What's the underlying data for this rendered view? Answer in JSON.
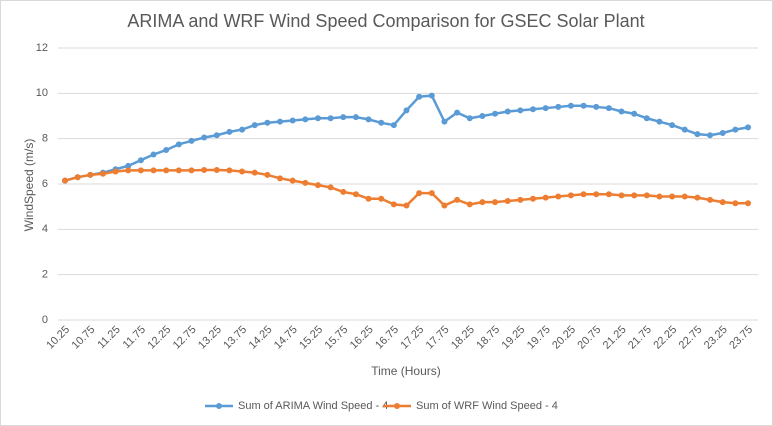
{
  "chart_data": {
    "type": "line",
    "title": "ARIMA and WRF Wind Speed Comparison for GSEC Solar Plant",
    "x_label": "Time (Hours)",
    "y_label": "WindSpeed (m/s)",
    "categories": [
      "10.25",
      null,
      "10.75",
      null,
      "11.25",
      null,
      "11.75",
      null,
      "12.25",
      null,
      "12.75",
      null,
      "13.25",
      null,
      "13.75",
      null,
      "14.25",
      null,
      "14.75",
      null,
      "15.25",
      null,
      "15.75",
      null,
      "16.25",
      null,
      "16.75",
      null,
      "17.25",
      null,
      "17.75",
      null,
      "18.25",
      null,
      "18.75",
      null,
      "19.25",
      null,
      "19.75",
      null,
      "20.25",
      null,
      "20.75",
      null,
      "21.25",
      null,
      "21.75",
      null,
      "22.25",
      null,
      "22.75",
      null,
      "23.25",
      null,
      "23.75"
    ],
    "series": [
      {
        "name": "Sum of ARIMA Wind Speed - 4",
        "color": "#5b9bd5",
        "values": [
          6.15,
          6.3,
          6.4,
          6.5,
          6.65,
          6.8,
          7.05,
          7.3,
          7.5,
          7.75,
          7.9,
          8.05,
          8.15,
          8.3,
          8.4,
          8.6,
          8.7,
          8.75,
          8.8,
          8.85,
          8.9,
          8.9,
          8.95,
          8.95,
          8.85,
          8.7,
          8.6,
          9.25,
          9.85,
          9.9,
          8.75,
          9.15,
          8.9,
          9.0,
          9.1,
          9.2,
          9.25,
          9.3,
          9.35,
          9.4,
          9.45,
          9.45,
          9.4,
          9.35,
          9.2,
          9.1,
          8.9,
          8.75,
          8.6,
          8.4,
          8.2,
          8.15,
          8.25,
          8.4,
          8.5
        ]
      },
      {
        "name": "Sum of WRF Wind Speed - 4",
        "color": "#ed7d31",
        "values": [
          6.15,
          6.3,
          6.4,
          6.45,
          6.55,
          6.6,
          6.6,
          6.6,
          6.6,
          6.6,
          6.6,
          6.62,
          6.62,
          6.6,
          6.55,
          6.5,
          6.4,
          6.25,
          6.15,
          6.05,
          5.95,
          5.85,
          5.65,
          5.55,
          5.35,
          5.35,
          5.1,
          5.05,
          5.6,
          5.6,
          5.05,
          5.3,
          5.1,
          5.2,
          5.2,
          5.25,
          5.3,
          5.35,
          5.4,
          5.45,
          5.5,
          5.55,
          5.55,
          5.55,
          5.5,
          5.5,
          5.5,
          5.45,
          5.45,
          5.45,
          5.4,
          5.3,
          5.2,
          5.15,
          5.15
        ]
      }
    ],
    "ylim": [
      0,
      12
    ],
    "yticks": [
      0,
      2,
      4,
      6,
      8,
      10,
      12
    ],
    "grid": true,
    "legend": "bottom"
  }
}
